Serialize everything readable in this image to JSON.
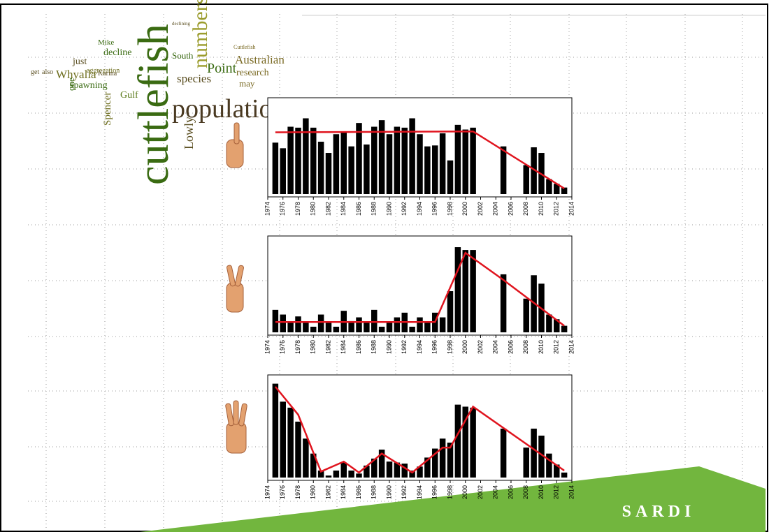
{
  "word_cloud": [
    "cuttlefish",
    "population",
    "numbers",
    "Whyalla",
    "Point",
    "Australian",
    "species",
    "decline",
    "spawning",
    "Gulf",
    "Spencer",
    "Lowly",
    "South",
    "just",
    "Mike",
    "research",
    "may",
    "aggregation",
    "Karina",
    "one",
    "get",
    "also",
    "declining",
    "Cuttlefish"
  ],
  "logo": "SARDI",
  "chart_data": [
    {
      "type": "bar",
      "color": "#000000",
      "trend_color": "#e0141e",
      "x": [
        1975,
        1976,
        1977,
        1978,
        1979,
        1980,
        1981,
        1982,
        1983,
        1984,
        1985,
        1986,
        1987,
        1988,
        1989,
        1990,
        1991,
        1992,
        1993,
        1994,
        1995,
        1996,
        1997,
        1998,
        1999,
        2000,
        2001,
        2002,
        2003,
        2004,
        2005,
        2006,
        2007,
        2008,
        2009,
        2010,
        2011,
        2012,
        2013
      ],
      "values": [
        55,
        49,
        72,
        71,
        81,
        71,
        56,
        44,
        64,
        66,
        51,
        76,
        53,
        72,
        79,
        64,
        72,
        71,
        81,
        64,
        51,
        52,
        65,
        36,
        74,
        69,
        71,
        null,
        null,
        null,
        51,
        null,
        null,
        31,
        50,
        44,
        16,
        11,
        7
      ],
      "trend": {
        "x": [
          1975,
          2001,
          2013
        ],
        "values": [
          66,
          67,
          6
        ]
      },
      "xlim": [
        1974,
        2014
      ],
      "ylim": [
        0,
        100
      ],
      "xticks": [
        1974,
        1976,
        1978,
        1980,
        1982,
        1984,
        1986,
        1988,
        1990,
        1992,
        1994,
        1996,
        1998,
        2000,
        2002,
        2004,
        2006,
        2008,
        2010,
        2012,
        2014
      ]
    },
    {
      "type": "bar",
      "color": "#000000",
      "trend_color": "#e0141e",
      "x": [
        1975,
        1976,
        1977,
        1978,
        1979,
        1980,
        1981,
        1982,
        1983,
        1984,
        1985,
        1986,
        1987,
        1988,
        1989,
        1990,
        1991,
        1992,
        1993,
        1994,
        1995,
        1996,
        1997,
        1998,
        1999,
        2000,
        2001,
        2002,
        2003,
        2004,
        2005,
        2006,
        2007,
        2008,
        2009,
        2010,
        2011,
        2012,
        2013
      ],
      "values": [
        24,
        19,
        11,
        17,
        11,
        6,
        19,
        11,
        6,
        23,
        12,
        16,
        11,
        24,
        6,
        11,
        16,
        21,
        6,
        16,
        11,
        21,
        16,
        44,
        91,
        88,
        88,
        null,
        null,
        null,
        62,
        null,
        null,
        36,
        61,
        52,
        19,
        14,
        7
      ],
      "trend": {
        "x": [
          1975,
          1996,
          2000,
          2005,
          2013
        ],
        "values": [
          11,
          11,
          85,
          56,
          7
        ]
      },
      "xlim": [
        1974,
        2014
      ],
      "ylim": [
        0,
        100
      ],
      "xticks": [
        1974,
        1976,
        1978,
        1980,
        1982,
        1984,
        1986,
        1988,
        1990,
        1992,
        1994,
        1996,
        1998,
        2000,
        2002,
        2004,
        2006,
        2008,
        2010,
        2012,
        2014
      ]
    },
    {
      "type": "bar",
      "color": "#000000",
      "trend_color": "#e0141e",
      "x": [
        1975,
        1976,
        1977,
        1978,
        1979,
        1980,
        1981,
        1982,
        1983,
        1984,
        1985,
        1986,
        1987,
        1988,
        1989,
        1990,
        1991,
        1992,
        1993,
        1994,
        1995,
        1996,
        1997,
        1998,
        1999,
        2000,
        2001,
        2002,
        2003,
        2004,
        2005,
        2006,
        2007,
        2008,
        2009,
        2010,
        2011,
        2012,
        2013
      ],
      "values": [
        94,
        76,
        70,
        56,
        39,
        24,
        7,
        2,
        7,
        15,
        7,
        4,
        12,
        19,
        28,
        16,
        15,
        14,
        7,
        11,
        20,
        29,
        39,
        35,
        73,
        71,
        70,
        null,
        null,
        null,
        49,
        null,
        null,
        30,
        49,
        42,
        24,
        13,
        5
      ],
      "trend": {
        "x": [
          1975,
          1978,
          1981,
          1984,
          1986,
          1989,
          1993,
          1997,
          1998,
          2001,
          2013
        ],
        "values": [
          91,
          63,
          6,
          16,
          5,
          24,
          5,
          30,
          30,
          71,
          7
        ]
      },
      "xlim": [
        1974,
        2014
      ],
      "ylim": [
        0,
        100
      ],
      "xticks": [
        1974,
        1976,
        1978,
        1980,
        1982,
        1984,
        1986,
        1988,
        1990,
        1992,
        1994,
        1996,
        1998,
        2000,
        2002,
        2004,
        2006,
        2008,
        2010,
        2012,
        2014
      ]
    }
  ]
}
